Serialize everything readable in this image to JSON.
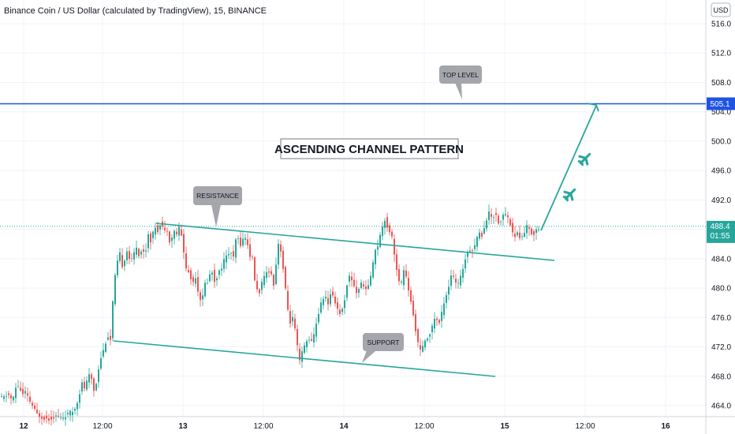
{
  "title": "Binance Coin / US Dollar (calculated by TradingView), 15, BINANCE",
  "currency": "USD",
  "chart_data": {
    "type": "candlestick",
    "symbol": "Binance Coin / US Dollar",
    "interval": "15",
    "exchange": "BINANCE",
    "ylim": [
      463,
      518
    ],
    "y_ticks": [
      "516.0",
      "512.0",
      "508.0",
      "504.0",
      "500.0",
      "496.0",
      "492.0",
      "488.0",
      "484.0",
      "480.0",
      "476.0",
      "472.0",
      "468.0",
      "464.0"
    ],
    "x_ticks": [
      "12",
      "12:00",
      "13",
      "12:00",
      "14",
      "12:00",
      "15",
      "12:00",
      "16"
    ],
    "bold_x_ticks": [
      "12",
      "13",
      "14",
      "15",
      "16"
    ],
    "last_price": "488.4",
    "countdown": "01:55",
    "top_level_price": "505.1",
    "top_level_color": "#1e53e5",
    "trend_color": "#26a69a",
    "up_color": "#26a69a",
    "down_color": "#ef5350",
    "grid": true,
    "annotations": {
      "top_level": "TOP LEVEL",
      "resistance": "RESISTANCE",
      "support": "SUPPORT",
      "pattern": "ASCENDING CHANNEL PATTERN"
    },
    "price_path": [
      [
        0,
        465.2
      ],
      [
        6,
        465.0
      ],
      [
        12,
        465.6
      ],
      [
        18,
        464.6
      ],
      [
        22,
        466.4
      ],
      [
        26,
        466.8
      ],
      [
        30,
        465.4
      ],
      [
        34,
        465.8
      ],
      [
        38,
        464.9
      ],
      [
        42,
        464.2
      ],
      [
        48,
        462.9
      ],
      [
        56,
        462.4
      ],
      [
        64,
        462.2
      ],
      [
        72,
        462.6
      ],
      [
        80,
        462.3
      ],
      [
        88,
        462.8
      ],
      [
        94,
        463.2
      ],
      [
        98,
        463.8
      ],
      [
        102,
        465.4
      ],
      [
        106,
        467.0
      ],
      [
        110,
        466.2
      ],
      [
        114,
        468.2
      ],
      [
        118,
        467.6
      ],
      [
        122,
        465.6
      ],
      [
        126,
        468.6
      ],
      [
        130,
        470.6
      ],
      [
        134,
        471.8
      ],
      [
        138,
        473.6
      ],
      [
        142,
        472.9
      ],
      [
        146,
        479.8
      ],
      [
        150,
        483.2
      ],
      [
        154,
        484.6
      ],
      [
        158,
        482.6
      ],
      [
        162,
        485.4
      ],
      [
        166,
        484.1
      ],
      [
        170,
        483.6
      ],
      [
        174,
        486.0
      ],
      [
        178,
        484.6
      ],
      [
        182,
        485.2
      ],
      [
        186,
        484.6
      ],
      [
        190,
        487.4
      ],
      [
        194,
        486.2
      ],
      [
        198,
        488.6
      ],
      [
        202,
        487.8
      ],
      [
        206,
        489.2
      ],
      [
        210,
        487.6
      ],
      [
        214,
        488.0
      ],
      [
        218,
        486.0
      ],
      [
        222,
        487.8
      ],
      [
        226,
        487.4
      ],
      [
        230,
        488.4
      ],
      [
        234,
        485.8
      ],
      [
        238,
        482.6
      ],
      [
        242,
        482.0
      ],
      [
        246,
        480.6
      ],
      [
        250,
        481.6
      ],
      [
        254,
        479.0
      ],
      [
        258,
        478.2
      ],
      [
        262,
        480.6
      ],
      [
        266,
        481.0
      ],
      [
        270,
        482.6
      ],
      [
        274,
        481.0
      ],
      [
        278,
        481.8
      ],
      [
        282,
        482.6
      ],
      [
        286,
        483.8
      ],
      [
        290,
        484.4
      ],
      [
        294,
        485.1
      ],
      [
        298,
        484.0
      ],
      [
        302,
        487.4
      ],
      [
        306,
        485.8
      ],
      [
        310,
        486.6
      ],
      [
        314,
        487.0
      ],
      [
        318,
        484.6
      ],
      [
        322,
        484.0
      ],
      [
        326,
        480.2
      ],
      [
        330,
        479.2
      ],
      [
        334,
        480.6
      ],
      [
        338,
        481.6
      ],
      [
        342,
        482.6
      ],
      [
        346,
        481.8
      ],
      [
        350,
        480.2
      ],
      [
        354,
        486.4
      ],
      [
        358,
        485.2
      ],
      [
        362,
        481.8
      ],
      [
        366,
        477.6
      ],
      [
        370,
        475.4
      ],
      [
        374,
        476.0
      ],
      [
        378,
        472.6
      ],
      [
        382,
        470.0
      ],
      [
        386,
        471.6
      ],
      [
        390,
        472.6
      ],
      [
        394,
        473.2
      ],
      [
        398,
        472.4
      ],
      [
        402,
        474.8
      ],
      [
        406,
        476.6
      ],
      [
        410,
        478.2
      ],
      [
        414,
        479.2
      ],
      [
        418,
        477.6
      ],
      [
        422,
        479.8
      ],
      [
        426,
        478.4
      ],
      [
        430,
        477.2
      ],
      [
        434,
        476.4
      ],
      [
        438,
        477.8
      ],
      [
        442,
        480.6
      ],
      [
        446,
        481.8
      ],
      [
        450,
        480.6
      ],
      [
        454,
        479.4
      ],
      [
        458,
        480.2
      ],
      [
        462,
        480.8
      ],
      [
        466,
        479.6
      ],
      [
        470,
        480.8
      ],
      [
        474,
        482.6
      ],
      [
        478,
        485.4
      ],
      [
        482,
        486.0
      ],
      [
        486,
        488.2
      ],
      [
        490,
        489.4
      ],
      [
        494,
        488.0
      ],
      [
        498,
        487.6
      ],
      [
        502,
        484.8
      ],
      [
        506,
        481.6
      ],
      [
        510,
        480.0
      ],
      [
        514,
        482.6
      ],
      [
        518,
        481.0
      ],
      [
        522,
        478.6
      ],
      [
        526,
        476.2
      ],
      [
        530,
        473.8
      ],
      [
        534,
        471.2
      ],
      [
        538,
        472.0
      ],
      [
        542,
        472.8
      ],
      [
        546,
        473.8
      ],
      [
        550,
        474.6
      ],
      [
        554,
        476.4
      ],
      [
        558,
        474.8
      ],
      [
        562,
        476.6
      ],
      [
        566,
        478.6
      ],
      [
        570,
        479.8
      ],
      [
        574,
        481.8
      ],
      [
        578,
        481.2
      ],
      [
        582,
        480.2
      ],
      [
        586,
        481.4
      ],
      [
        590,
        483.2
      ],
      [
        594,
        484.8
      ],
      [
        598,
        485.4
      ],
      [
        602,
        485.0
      ],
      [
        606,
        486.8
      ],
      [
        610,
        487.4
      ],
      [
        614,
        487.2
      ],
      [
        618,
        489.2
      ],
      [
        622,
        490.2
      ],
      [
        626,
        489.6
      ],
      [
        630,
        490.2
      ],
      [
        634,
        489.0
      ],
      [
        638,
        489.2
      ],
      [
        642,
        490.4
      ],
      [
        646,
        489.6
      ],
      [
        650,
        488.4
      ],
      [
        654,
        486.8
      ],
      [
        658,
        487.6
      ],
      [
        662,
        486.6
      ],
      [
        666,
        487.4
      ],
      [
        670,
        488.4
      ],
      [
        674,
        487.8
      ],
      [
        678,
        487.2
      ],
      [
        682,
        488.0
      ],
      [
        686,
        488.4
      ]
    ]
  }
}
